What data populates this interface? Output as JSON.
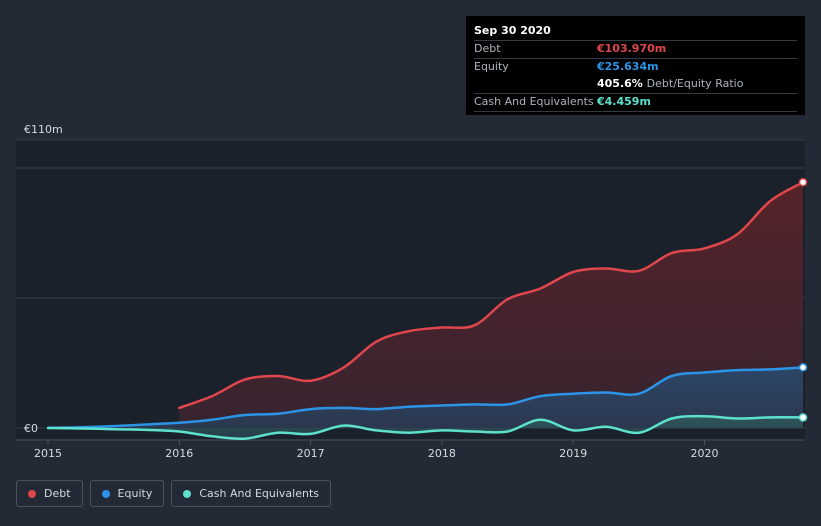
{
  "chart_data": {
    "type": "area",
    "currency": "€",
    "y_unit": "m",
    "ylim": [
      0,
      110
    ],
    "y_ticks": [
      {
        "value": 110,
        "label": "€110m"
      },
      {
        "value": 0,
        "label": "€0"
      }
    ],
    "x_ticks": [
      "2015",
      "2016",
      "2017",
      "2018",
      "2019",
      "2020"
    ],
    "xlim": [
      2015,
      2020.75
    ],
    "series": [
      {
        "name": "Debt",
        "color": "#e0474c",
        "x": [
          2016.0,
          2016.25,
          2016.5,
          2016.75,
          2017.0,
          2017.25,
          2017.5,
          2017.75,
          2018.0,
          2018.25,
          2018.5,
          2018.75,
          2019.0,
          2019.25,
          2019.5,
          2019.75,
          2020.0,
          2020.25,
          2020.5,
          2020.75
        ],
        "values": [
          8.5,
          13.5,
          20.5,
          22.0,
          20.0,
          25.5,
          36.5,
          41.0,
          42.5,
          43.5,
          54.5,
          59.0,
          66.0,
          67.5,
          66.5,
          74.0,
          76.0,
          82.0,
          96.0,
          103.97
        ]
      },
      {
        "name": "Equity",
        "color": "#2c94e6",
        "x": [
          2015.0,
          2015.25,
          2015.5,
          2015.75,
          2016.0,
          2016.25,
          2016.5,
          2016.75,
          2017.0,
          2017.25,
          2017.5,
          2017.75,
          2018.0,
          2018.25,
          2018.5,
          2018.75,
          2019.0,
          2019.25,
          2019.5,
          2019.75,
          2020.0,
          2020.25,
          2020.5,
          2020.75
        ],
        "values": [
          0.1,
          0.3,
          0.8,
          1.5,
          2.2,
          3.5,
          5.5,
          6.0,
          8.0,
          8.5,
          8.0,
          9.0,
          9.5,
          10.0,
          10.0,
          13.5,
          14.5,
          15.0,
          14.5,
          22.0,
          23.5,
          24.5,
          24.8,
          25.634
        ]
      },
      {
        "name": "Cash And Equivalents",
        "color": "#5de0cc",
        "x": [
          2015.0,
          2015.25,
          2015.5,
          2015.75,
          2016.0,
          2016.25,
          2016.5,
          2016.75,
          2017.0,
          2017.25,
          2017.5,
          2017.75,
          2018.0,
          2018.25,
          2018.5,
          2018.75,
          2019.0,
          2019.25,
          2019.5,
          2019.75,
          2020.0,
          2020.25,
          2020.5,
          2020.75
        ],
        "values": [
          0.0,
          -0.2,
          -0.5,
          -0.8,
          -1.5,
          -3.5,
          -4.5,
          -2.0,
          -2.5,
          1.0,
          -1.0,
          -2.0,
          -1.0,
          -1.5,
          -1.5,
          3.5,
          -1.0,
          0.5,
          -2.0,
          4.0,
          5.0,
          4.0,
          4.5,
          4.459
        ]
      }
    ]
  },
  "tooltip": {
    "date": "Sep 30 2020",
    "rows": [
      {
        "label": "Debt",
        "value": "€103.970m",
        "color": "#e0474c"
      },
      {
        "label": "Equity",
        "value": "€25.634m",
        "color": "#2c94e6"
      },
      {
        "label": "",
        "value": "405.6%",
        "extra": "Debt/Equity Ratio",
        "color": "#ffffff"
      },
      {
        "label": "Cash And Equivalents",
        "value": "€4.459m",
        "color": "#5de0cc"
      }
    ]
  },
  "legend": [
    {
      "label": "Debt",
      "color": "#e0474c"
    },
    {
      "label": "Equity",
      "color": "#2c94e6"
    },
    {
      "label": "Cash And Equivalents",
      "color": "#5de0cc"
    }
  ]
}
